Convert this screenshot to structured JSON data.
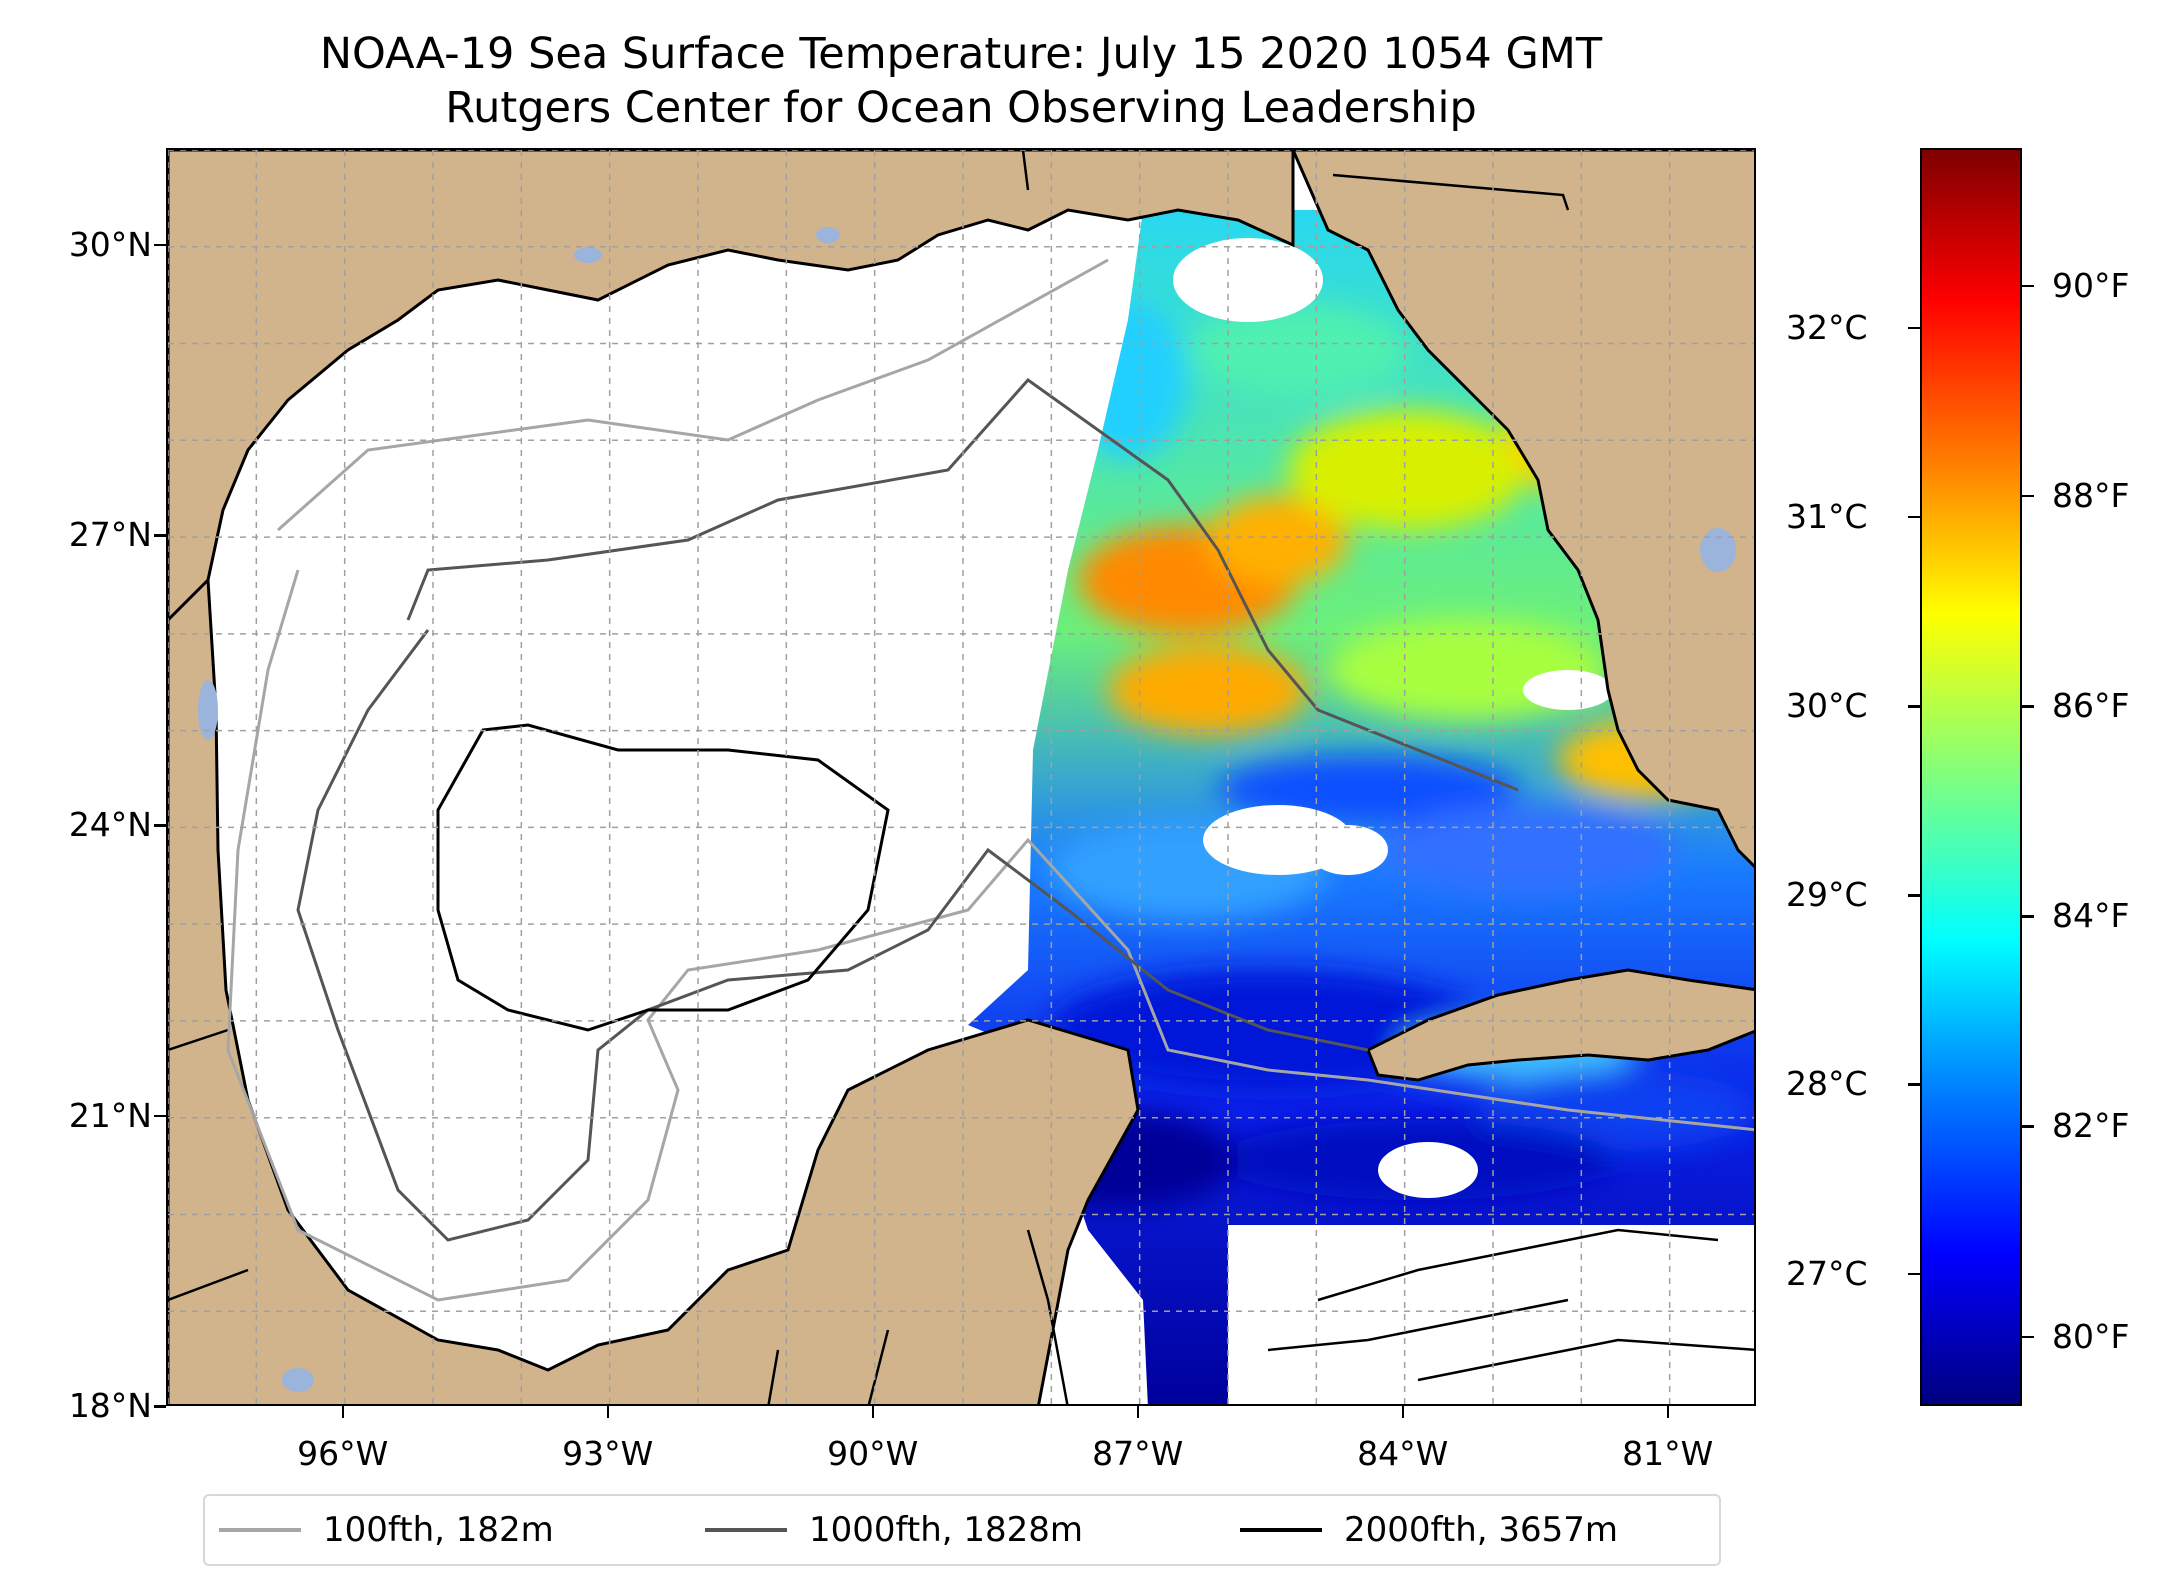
{
  "title": {
    "line1": "NOAA-19 Sea Surface Temperature: July 15 2020 1054 GMT",
    "line2": "Rutgers Center for Ocean Observing Leadership"
  },
  "map": {
    "lat_range": [
      18,
      31
    ],
    "lon_range": [
      -98,
      -80
    ],
    "lat_ticks": [
      {
        "value": 18,
        "label": "18°N"
      },
      {
        "value": 21,
        "label": "21°N"
      },
      {
        "value": 24,
        "label": "24°N"
      },
      {
        "value": 27,
        "label": "27°N"
      },
      {
        "value": 30,
        "label": "30°N"
      }
    ],
    "lon_ticks": [
      {
        "value": -96,
        "label": "96°W"
      },
      {
        "value": -93,
        "label": "93°W"
      },
      {
        "value": -90,
        "label": "90°W"
      },
      {
        "value": -87,
        "label": "87°W"
      },
      {
        "value": -84,
        "label": "84°W"
      },
      {
        "value": -81,
        "label": "81°W"
      }
    ],
    "gridlines": true,
    "land_color": "#d2b48c",
    "lake_color": "#9ab4dc"
  },
  "colorbar": {
    "colormap": "jet",
    "range_c": [
      26.3,
      32.95
    ],
    "celsius_ticks": [
      {
        "value": 27,
        "label": "27°C"
      },
      {
        "value": 28,
        "label": "28°C"
      },
      {
        "value": 29,
        "label": "29°C"
      },
      {
        "value": 30,
        "label": "30°C"
      },
      {
        "value": 31,
        "label": "31°C"
      },
      {
        "value": 32,
        "label": "32°C"
      }
    ],
    "fahrenheit_ticks": [
      {
        "value": 80,
        "label": "80°F"
      },
      {
        "value": 82,
        "label": "82°F"
      },
      {
        "value": 84,
        "label": "84°F"
      },
      {
        "value": 86,
        "label": "86°F"
      },
      {
        "value": 88,
        "label": "88°F"
      },
      {
        "value": 90,
        "label": "90°F"
      }
    ]
  },
  "legend": {
    "placement": "bottom-center",
    "items": [
      {
        "label": "100fth, 182m",
        "color": "#a6a6a6"
      },
      {
        "label": "1000fth, 1828m",
        "color": "#555555"
      },
      {
        "label": "2000fth, 3657m",
        "color": "#000000"
      }
    ]
  }
}
